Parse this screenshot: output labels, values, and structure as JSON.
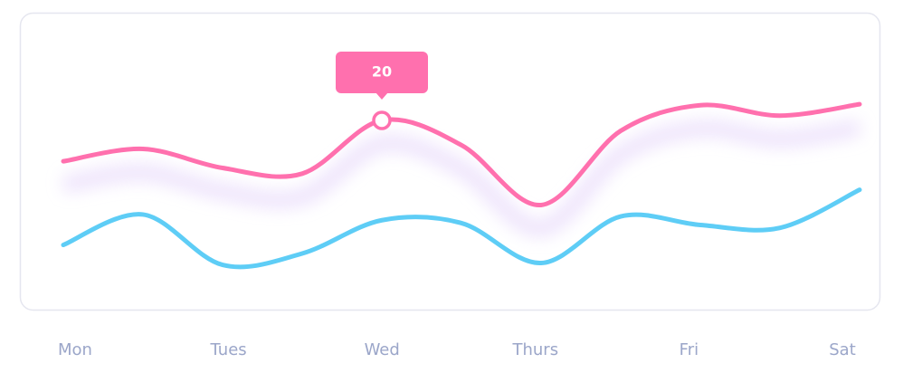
{
  "chart_data": {
    "type": "line",
    "categories": [
      "Mon",
      null,
      "Tues",
      null,
      "Wed",
      null,
      "Thurs",
      null,
      "Fri",
      null,
      "Sat"
    ],
    "series": [
      {
        "color": "#ff70ae",
        "values": [
          15.7,
          17.0,
          15.0,
          14.4,
          20,
          17.4,
          11.1,
          18.9,
          21.6,
          20.5,
          21.7
        ]
      },
      {
        "color": "#5ecdf6",
        "values": [
          6.9,
          10.1,
          4.8,
          6.0,
          9.5,
          9.2,
          5.0,
          9.9,
          9.0,
          8.7,
          12.7
        ]
      }
    ],
    "ylim": [
      0,
      30
    ],
    "tooltip_index": 4
  }
}
